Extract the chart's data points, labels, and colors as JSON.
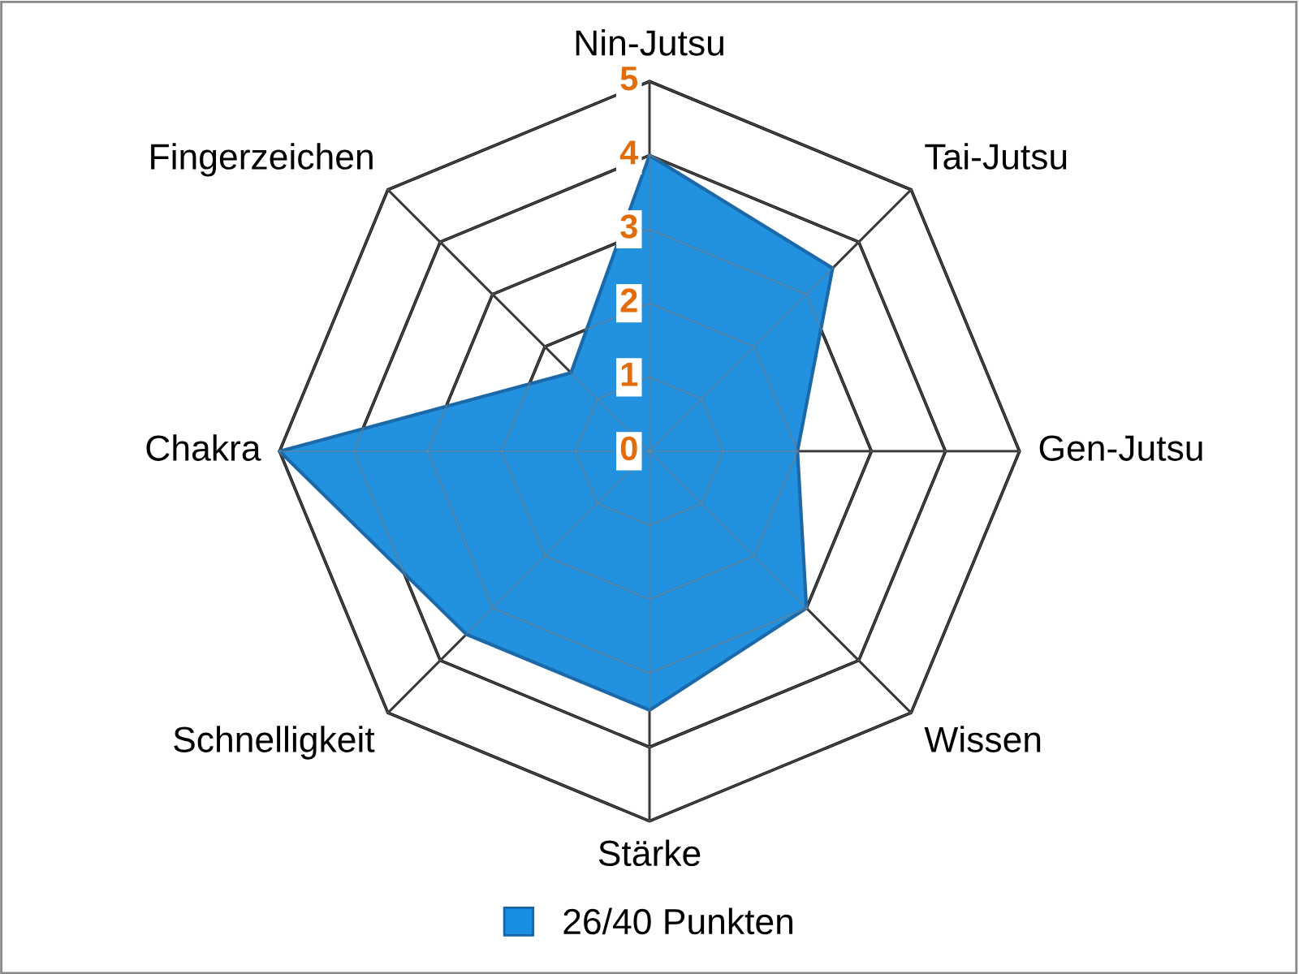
{
  "chart_data": {
    "type": "radar",
    "categories": [
      "Nin-Jutsu",
      "Tai-Jutsu",
      "Gen-Jutsu",
      "Wissen",
      "Stärke",
      "Schnelligkeit",
      "Chakra",
      "Fingerzeichen"
    ],
    "series": [
      {
        "name": "26/40 Punkten",
        "color": "#1a8ee0",
        "values": [
          4,
          3.5,
          2,
          3,
          3.5,
          3.5,
          5,
          1.5
        ]
      }
    ],
    "ylim": [
      0,
      5
    ],
    "yticks": [
      0,
      1,
      2,
      3,
      4,
      5
    ],
    "grid": true,
    "legend": "bottom"
  }
}
